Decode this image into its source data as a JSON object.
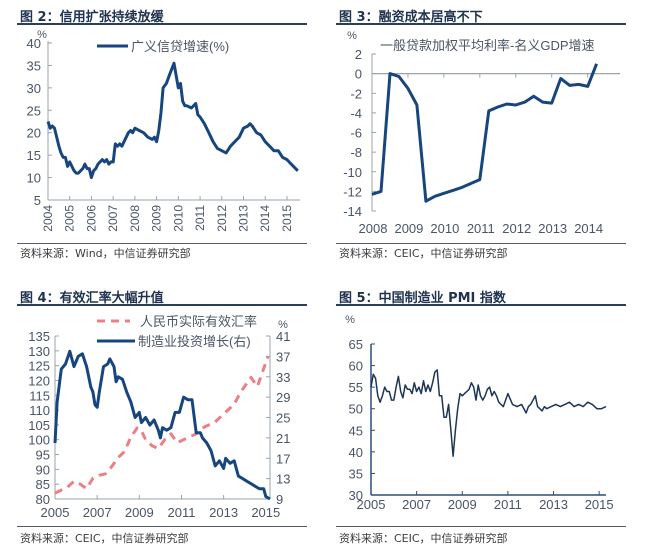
{
  "colors": {
    "navy": "#17467f",
    "pmi": "#1e3556",
    "pink": "#ec7f86",
    "axis": "#9aa3ae",
    "text": "#4a5566"
  },
  "chart_data": [
    {
      "id": "fig2",
      "type": "line",
      "title": "图 2：信用扩张持续放缓",
      "source": "资料来源：Wind，中信证券研究部",
      "ylabel": "%",
      "ylim": [
        5,
        40
      ],
      "yticks": [
        5,
        10,
        15,
        20,
        25,
        30,
        35,
        40
      ],
      "xlim": [
        2004,
        2015.6
      ],
      "xticks": [
        "2004",
        "2005",
        "2006",
        "2007",
        "2008",
        "2009",
        "2010",
        "2011",
        "2012",
        "2013",
        "2014",
        "2015"
      ],
      "legend": "top-center",
      "series": [
        {
          "name": "广义信贷增速(%)",
          "x": [
            2004.0,
            2004.1,
            2004.2,
            2004.3,
            2004.4,
            2004.5,
            2004.6,
            2004.7,
            2004.8,
            2004.9,
            2005.0,
            2005.1,
            2005.2,
            2005.3,
            2005.4,
            2005.5,
            2005.6,
            2005.7,
            2005.8,
            2005.9,
            2006.0,
            2006.1,
            2006.2,
            2006.3,
            2006.4,
            2006.5,
            2006.6,
            2006.7,
            2006.8,
            2006.9,
            2007.0,
            2007.1,
            2007.2,
            2007.3,
            2007.4,
            2007.5,
            2007.6,
            2007.7,
            2007.8,
            2007.9,
            2008.0,
            2008.2,
            2008.4,
            2008.6,
            2008.8,
            2008.9,
            2009.0,
            2009.1,
            2009.2,
            2009.3,
            2009.45,
            2009.6,
            2009.8,
            2010.0,
            2010.1,
            2010.2,
            2010.3,
            2010.4,
            2010.6,
            2010.8,
            2010.9,
            2011.0,
            2011.2,
            2011.4,
            2011.6,
            2011.8,
            2012.0,
            2012.2,
            2012.4,
            2012.6,
            2012.8,
            2013.0,
            2013.2,
            2013.3,
            2013.4,
            2013.6,
            2013.8,
            2014.0,
            2014.2,
            2014.4,
            2014.5,
            2014.6,
            2014.8,
            2015.0,
            2015.1,
            2015.3,
            2015.5
          ],
          "y": [
            22.5,
            21.0,
            21.5,
            21.0,
            19.0,
            17.0,
            15.5,
            14.5,
            14.5,
            12.5,
            13.5,
            12.5,
            11.5,
            11.0,
            11.0,
            11.5,
            12.0,
            13.0,
            12.0,
            12.0,
            10.0,
            11.5,
            12.0,
            13.0,
            13.5,
            14.0,
            13.5,
            14.0,
            13.0,
            13.5,
            13.5,
            17.5,
            17.0,
            17.5,
            17.0,
            18.0,
            19.0,
            20.0,
            20.5,
            20.0,
            21.0,
            20.5,
            20.0,
            19.0,
            18.5,
            19.0,
            18.0,
            20.5,
            24.5,
            30.0,
            31.0,
            33.0,
            35.5,
            30.0,
            31.0,
            27.0,
            26.0,
            26.0,
            25.5,
            26.5,
            24.0,
            23.5,
            22.0,
            20.0,
            18.0,
            16.5,
            16.0,
            15.5,
            17.0,
            18.0,
            19.0,
            21.0,
            21.5,
            22.0,
            21.5,
            20.0,
            19.5,
            18.0,
            17.0,
            16.0,
            16.0,
            16.0,
            14.5,
            14.0,
            13.5,
            12.5,
            11.5
          ]
        }
      ]
    },
    {
      "id": "fig3",
      "type": "line",
      "title": "图 3：融资成本居高不下",
      "source": "资料来源：CEIC，中信证券研究部",
      "ylabel": "%",
      "ylim": [
        -14,
        2
      ],
      "yticks": [
        -14,
        -12,
        -10,
        -8,
        -6,
        -4,
        -2,
        0,
        2
      ],
      "xlim": [
        2008,
        2014.9
      ],
      "xticks": [
        "2008",
        "2009",
        "2010",
        "2011",
        "2012",
        "2013",
        "2014"
      ],
      "legend": "top-center",
      "series": [
        {
          "name": "一般贷款加权平均利率-名义GDP增速",
          "x": [
            2008.0,
            2008.25,
            2008.5,
            2008.75,
            2009.0,
            2009.25,
            2009.5,
            2009.75,
            2010.0,
            2010.25,
            2010.5,
            2010.75,
            2011.0,
            2011.25,
            2011.5,
            2011.75,
            2012.0,
            2012.25,
            2012.5,
            2012.75,
            2013.0,
            2013.25,
            2013.5,
            2013.75,
            2014.0,
            2014.25,
            2014.5,
            2014.75
          ],
          "y": [
            -12.3,
            -12.0,
            0.0,
            -0.3,
            -1.5,
            -3.2,
            -13.0,
            -12.5,
            -12.2,
            -11.9,
            -11.6,
            -11.2,
            -10.8,
            -3.8,
            -3.4,
            -3.1,
            -3.2,
            -2.9,
            -2.3,
            -2.9,
            -3.0,
            -0.5,
            -1.2,
            -1.1,
            -1.3,
            1.0,
            null,
            null
          ]
        }
      ]
    },
    {
      "id": "fig4",
      "type": "line",
      "title": "图 4：有效汇率大幅升值",
      "source": "资料来源：CEIC，中信证券研究部",
      "ylim": [
        80,
        135
      ],
      "yticks": [
        80,
        85,
        90,
        95,
        100,
        105,
        110,
        115,
        120,
        125,
        130,
        135
      ],
      "y2label": "%",
      "y2lim": [
        9,
        41
      ],
      "y2ticks": [
        9,
        13,
        17,
        21,
        25,
        29,
        33,
        37,
        41
      ],
      "xlim": [
        2005,
        2015.2
      ],
      "xticks": [
        "2005",
        "2007",
        "2009",
        "2011",
        "2013",
        "2015"
      ],
      "legend": "top-center",
      "series": [
        {
          "name": "人民币实际有效汇率",
          "axis": "left",
          "style": "dashed",
          "x": [
            2005.0,
            2005.3,
            2005.6,
            2005.9,
            2006.2,
            2006.5,
            2006.8,
            2007.1,
            2007.4,
            2007.7,
            2008.0,
            2008.3,
            2008.6,
            2008.9,
            2009.1,
            2009.3,
            2009.6,
            2009.9,
            2010.2,
            2010.5,
            2010.8,
            2011.1,
            2011.4,
            2011.7,
            2012.0,
            2012.3,
            2012.6,
            2012.9,
            2013.2,
            2013.5,
            2013.8,
            2014.0,
            2014.3,
            2014.6,
            2014.9,
            2015.1
          ],
          "y": [
            82.0,
            83.0,
            84.0,
            86.0,
            85.0,
            83.5,
            87.0,
            88.0,
            88.5,
            91.0,
            94.0,
            96.0,
            101.0,
            104.0,
            103.0,
            100.0,
            98.0,
            97.0,
            100.0,
            102.0,
            99.0,
            100.0,
            101.0,
            102.0,
            104.0,
            105.0,
            106.0,
            108.0,
            110.0,
            112.0,
            116.0,
            118.0,
            121.0,
            118.0,
            124.0,
            128.0
          ]
        },
        {
          "name": "制造业投资增长(右)",
          "axis": "right",
          "style": "solid",
          "x": [
            2005.0,
            2005.1,
            2005.3,
            2005.5,
            2005.7,
            2005.9,
            2006.0,
            2006.1,
            2006.3,
            2006.5,
            2006.7,
            2006.8,
            2006.9,
            2007.0,
            2007.1,
            2007.3,
            2007.5,
            2007.6,
            2007.8,
            2007.9,
            2008.0,
            2008.2,
            2008.4,
            2008.6,
            2008.8,
            2009.0,
            2009.1,
            2009.3,
            2009.5,
            2009.7,
            2009.9,
            2010.0,
            2010.1,
            2010.3,
            2010.5,
            2010.7,
            2010.9,
            2011.1,
            2011.3,
            2011.5,
            2011.7,
            2011.9,
            2012.0,
            2012.2,
            2012.4,
            2012.6,
            2012.8,
            2013.0,
            2013.1,
            2013.3,
            2013.5,
            2013.7,
            2013.9,
            2014.1,
            2014.3,
            2014.5,
            2014.7,
            2014.9,
            2015.0,
            2015.2
          ],
          "y": [
            20.0,
            28.0,
            34.5,
            35.5,
            38.0,
            35.0,
            36.0,
            37.0,
            37.5,
            35.0,
            31.0,
            30.0,
            27.5,
            27.0,
            30.0,
            35.0,
            35.5,
            36.5,
            35.0,
            32.0,
            33.0,
            32.5,
            30.0,
            28.0,
            25.0,
            26.0,
            24.0,
            25.0,
            23.5,
            24.5,
            22.5,
            21.0,
            23.0,
            22.5,
            23.0,
            26.0,
            26.0,
            29.0,
            28.5,
            28.5,
            22.0,
            22.0,
            21.0,
            20.0,
            18.5,
            15.5,
            16.5,
            15.0,
            17.0,
            16.0,
            16.5,
            13.5,
            13.0,
            12.5,
            12.0,
            11.5,
            11.0,
            11.0,
            9.5,
            9.0
          ]
        }
      ]
    },
    {
      "id": "fig5",
      "type": "line",
      "title": "图 5：中国制造业 PMI 指数",
      "source": "资料来源：CEIC，中信证券研究部",
      "ylabel": "%",
      "ylim": [
        30,
        65
      ],
      "yticks": [
        30,
        35,
        40,
        45,
        50,
        55,
        60,
        65
      ],
      "xlim": [
        2005,
        2015.3
      ],
      "xticks": [
        "2005",
        "2007",
        "2009",
        "2011",
        "2013",
        "2015"
      ],
      "series": [
        {
          "name": "中国制造业PMI",
          "x": [
            2005.0,
            2005.1,
            2005.2,
            2005.3,
            2005.4,
            2005.5,
            2005.6,
            2005.7,
            2005.8,
            2005.9,
            2006.0,
            2006.1,
            2006.2,
            2006.3,
            2006.4,
            2006.5,
            2006.6,
            2006.7,
            2006.8,
            2006.9,
            2007.0,
            2007.1,
            2007.2,
            2007.3,
            2007.4,
            2007.5,
            2007.6,
            2007.7,
            2007.8,
            2007.9,
            2008.0,
            2008.1,
            2008.2,
            2008.3,
            2008.4,
            2008.5,
            2008.6,
            2008.7,
            2008.8,
            2008.9,
            2009.0,
            2009.1,
            2009.2,
            2009.3,
            2009.4,
            2009.5,
            2009.6,
            2009.7,
            2009.8,
            2009.9,
            2010.0,
            2010.1,
            2010.2,
            2010.3,
            2010.4,
            2010.5,
            2010.6,
            2010.7,
            2010.8,
            2010.9,
            2011.0,
            2011.2,
            2011.4,
            2011.6,
            2011.8,
            2011.9,
            2012.0,
            2012.2,
            2012.3,
            2012.4,
            2012.5,
            2012.6,
            2012.7,
            2012.9,
            2013.1,
            2013.3,
            2013.5,
            2013.7,
            2013.9,
            2014.1,
            2014.3,
            2014.5,
            2014.7,
            2014.9,
            2015.1,
            2015.3
          ],
          "y": [
            55.0,
            58.0,
            57.0,
            53.0,
            51.5,
            53.0,
            55.0,
            54.0,
            54.0,
            52.0,
            52.0,
            55.0,
            57.5,
            54.0,
            52.5,
            55.5,
            54.5,
            54.5,
            53.5,
            56.0,
            54.0,
            55.0,
            53.5,
            56.5,
            54.0,
            55.5,
            54.0,
            56.0,
            58.5,
            59.0,
            53.0,
            53.0,
            48.0,
            48.0,
            51.0,
            45.0,
            39.0,
            45.0,
            50.0,
            53.5,
            53.0,
            53.5,
            54.0,
            54.5,
            56.0,
            55.0,
            52.0,
            55.5,
            53.0,
            52.0,
            53.0,
            54.5,
            55.0,
            53.0,
            54.0,
            53.0,
            51.5,
            51.0,
            50.5,
            52.0,
            53.5,
            51.0,
            50.5,
            51.0,
            49.0,
            50.5,
            51.0,
            53.0,
            50.5,
            50.0,
            49.5,
            50.5,
            50.0,
            50.5,
            51.0,
            50.5,
            51.0,
            51.5,
            50.5,
            51.0,
            50.5,
            51.5,
            51.0,
            50.0,
            50.0,
            50.5
          ]
        }
      ]
    }
  ]
}
